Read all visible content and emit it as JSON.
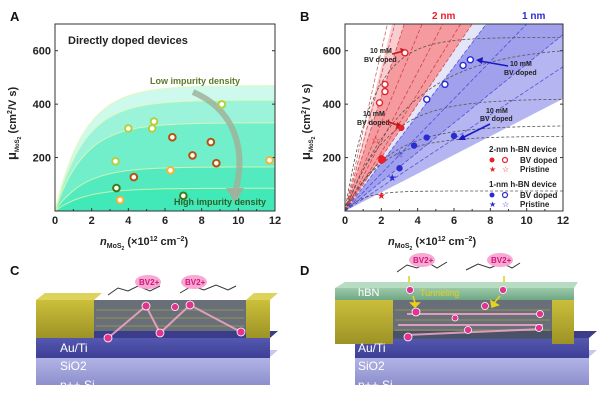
{
  "panels": {
    "A": {
      "label": "A"
    },
    "B": {
      "label": "B"
    },
    "C": {
      "label": "C",
      "layers": [
        "Au/Ti",
        "SiO2",
        "p++ Si"
      ],
      "molecule_label": "BV2+"
    },
    "D": {
      "label": "D",
      "layers": [
        "hBN",
        "Au/Ti",
        "SiO2",
        "p++ Si"
      ],
      "molecule_label": "BV2+",
      "annotation": "Tunneling"
    }
  },
  "chart_data": [
    {
      "id": "A",
      "type": "scatter",
      "title": "Directly doped devices",
      "xlabel": "n_MoS2 (×10^12 cm^-2)",
      "ylabel": "μ_MoS2 (cm^2/V s)",
      "xlim": [
        0,
        12
      ],
      "ylim": [
        0,
        700
      ],
      "xticks": [
        "0",
        "2",
        "4",
        "6",
        "8",
        "10",
        "12"
      ],
      "yticks": [
        "200",
        "400",
        "600"
      ],
      "annotations": [
        "Low impurity density",
        "High impurity density"
      ],
      "colors": {
        "yellowgreen": "#b6cf3c",
        "brown": "#b5530f",
        "orange": "#f2b43c",
        "darkgreen": "#3f7a1a",
        "fill": "#37e6b4"
      },
      "points": [
        {
          "x": 4.0,
          "y": 309,
          "color": "yellowgreen"
        },
        {
          "x": 5.3,
          "y": 309,
          "color": "yellowgreen"
        },
        {
          "x": 5.4,
          "y": 335,
          "color": "yellowgreen"
        },
        {
          "x": 9.1,
          "y": 399,
          "color": "yellowgreen"
        },
        {
          "x": 3.3,
          "y": 186,
          "color": "yellowgreen"
        },
        {
          "x": 6.4,
          "y": 276,
          "color": "brown"
        },
        {
          "x": 8.5,
          "y": 258,
          "color": "brown"
        },
        {
          "x": 7.5,
          "y": 208,
          "color": "brown"
        },
        {
          "x": 8.8,
          "y": 179,
          "color": "brown"
        },
        {
          "x": 4.3,
          "y": 127,
          "color": "brown"
        },
        {
          "x": 6.3,
          "y": 152,
          "color": "orange"
        },
        {
          "x": 11.7,
          "y": 190,
          "color": "orange"
        },
        {
          "x": 3.55,
          "y": 41,
          "color": "orange"
        },
        {
          "x": 3.35,
          "y": 86,
          "color": "darkgreen"
        },
        {
          "x": 7.0,
          "y": 57,
          "color": "darkgreen"
        }
      ],
      "curves_saturation": [
        470,
        415,
        330,
        165,
        85
      ]
    },
    {
      "id": "B",
      "type": "scatter",
      "xlabel": "n_MoS2 (×10^12 cm^-2)",
      "ylabel": "μ_MoS2 (cm^2/V s)",
      "xlim": [
        0,
        12
      ],
      "ylim": [
        0,
        700
      ],
      "xticks": [
        "0",
        "2",
        "4",
        "6",
        "8",
        "10",
        "12"
      ],
      "yticks": [
        "200",
        "400",
        "600"
      ],
      "top_labels": [
        {
          "text": "2 nm",
          "color": "#e8202a"
        },
        {
          "text": "1 nm",
          "color": "#2b2bd6"
        }
      ],
      "annotations": [
        {
          "text": "10 mM BV doped",
          "target": "2nm-open-top"
        },
        {
          "text": "10 mM BV doped",
          "target": "2nm-filled"
        },
        {
          "text": "10 mM BV doped",
          "target": "1nm-open-top"
        },
        {
          "text": "10 mM BV doped",
          "target": "1nm-filled"
        }
      ],
      "legend": {
        "position": "bottom-right",
        "groups": [
          {
            "title": "2-nm  h-BN device",
            "color": "#e8202a",
            "entries": [
              "BV doped",
              "Pristine"
            ]
          },
          {
            "title": "1-nm  h-BN device",
            "color": "#2b2bd6",
            "entries": [
              "BV doped",
              "Pristine"
            ]
          }
        ]
      },
      "series": [
        {
          "name": "2-nm BV doped (open)",
          "color": "#e8202a",
          "marker": "open-circle",
          "points": [
            {
              "x": 3.3,
              "y": 592
            },
            {
              "x": 2.2,
              "y": 474
            },
            {
              "x": 2.2,
              "y": 447
            },
            {
              "x": 1.9,
              "y": 405
            }
          ]
        },
        {
          "name": "2-nm BV doped (filled)",
          "color": "#e8202a",
          "marker": "filled-circle",
          "points": [
            {
              "x": 3.1,
              "y": 311
            },
            {
              "x": 2.0,
              "y": 198
            },
            {
              "x": 2.0,
              "y": 188
            },
            {
              "x": 2.1,
              "y": 193
            }
          ]
        },
        {
          "name": "2-nm Pristine (open)",
          "color": "#e8202a",
          "marker": "open-star",
          "points": [
            {
              "x": 1.7,
              "y": 264
            }
          ]
        },
        {
          "name": "2-nm Pristine (filled)",
          "color": "#e8202a",
          "marker": "filled-star",
          "points": [
            {
              "x": 2.0,
              "y": 57
            }
          ]
        },
        {
          "name": "1-nm BV doped (open)",
          "color": "#2b2bd6",
          "marker": "open-circle",
          "points": [
            {
              "x": 6.9,
              "y": 566
            },
            {
              "x": 6.5,
              "y": 545
            },
            {
              "x": 5.5,
              "y": 474
            },
            {
              "x": 4.5,
              "y": 418
            }
          ]
        },
        {
          "name": "1-nm BV doped (filled)",
          "color": "#2b2bd6",
          "marker": "filled-circle",
          "points": [
            {
              "x": 6.0,
              "y": 281
            },
            {
              "x": 4.5,
              "y": 275
            },
            {
              "x": 3.8,
              "y": 245
            },
            {
              "x": 3.0,
              "y": 160
            }
          ]
        },
        {
          "name": "1-nm Pristine (open)",
          "color": "#2b2bd6",
          "marker": "open-star",
          "points": [
            {
              "x": 3.0,
              "y": 212
            }
          ]
        },
        {
          "name": "1-nm Pristine (filled)",
          "color": "#2b2bd6",
          "marker": "filled-star",
          "points": [
            {
              "x": 2.6,
              "y": 124
            }
          ]
        }
      ]
    }
  ]
}
